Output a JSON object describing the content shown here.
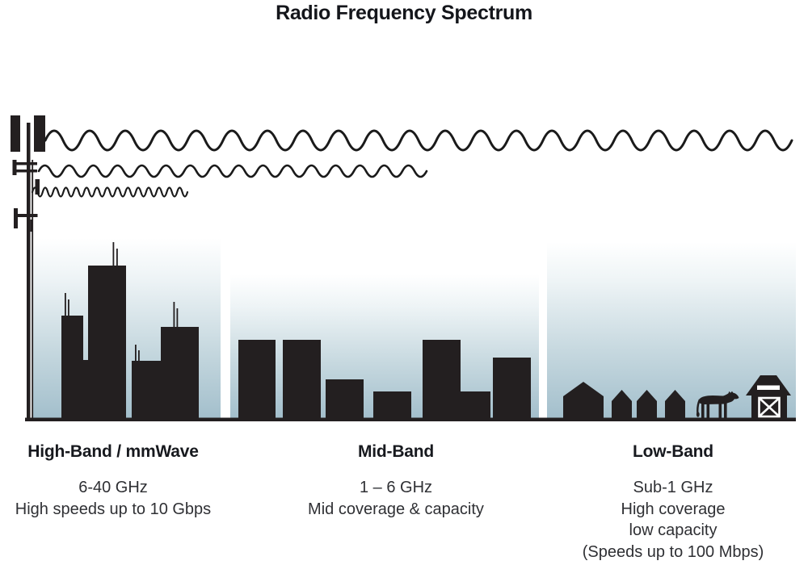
{
  "title": "Radio Frequency Spectrum",
  "bands": [
    {
      "id": "high-band",
      "heading": "High-Band / mmWave",
      "lines": [
        "6-40 GHz",
        "High speeds up to 10 Gbps"
      ]
    },
    {
      "id": "mid-band",
      "heading": "Mid-Band",
      "lines": [
        "1 – 6 GHz",
        "Mid coverage & capacity"
      ]
    },
    {
      "id": "low-band",
      "heading": "Low-Band",
      "lines": [
        "Sub-1 GHz",
        "High coverage",
        "low capacity",
        "(Speeds up to 100 Mbps)"
      ]
    }
  ],
  "icons": {
    "tower": "cell-tower-icon",
    "low_band_wave": "long-wavelength-wave-icon",
    "mid_band_wave": "medium-wavelength-wave-icon",
    "high_band_wave": "short-wavelength-wave-icon",
    "high_band_scene": "city-skyline-icon",
    "mid_band_scene": "town-skyline-icon",
    "low_band_scene": "rural-houses-icon",
    "cow": "cow-icon",
    "barn": "barn-icon"
  },
  "colors": {
    "ink": "#231f20",
    "wave_stroke": "#1a1a1a",
    "sky_top": "#ffffff",
    "sky_bottom": "#a3bfcc",
    "heading_text": "#17191e",
    "body_text": "#2f3034"
  }
}
